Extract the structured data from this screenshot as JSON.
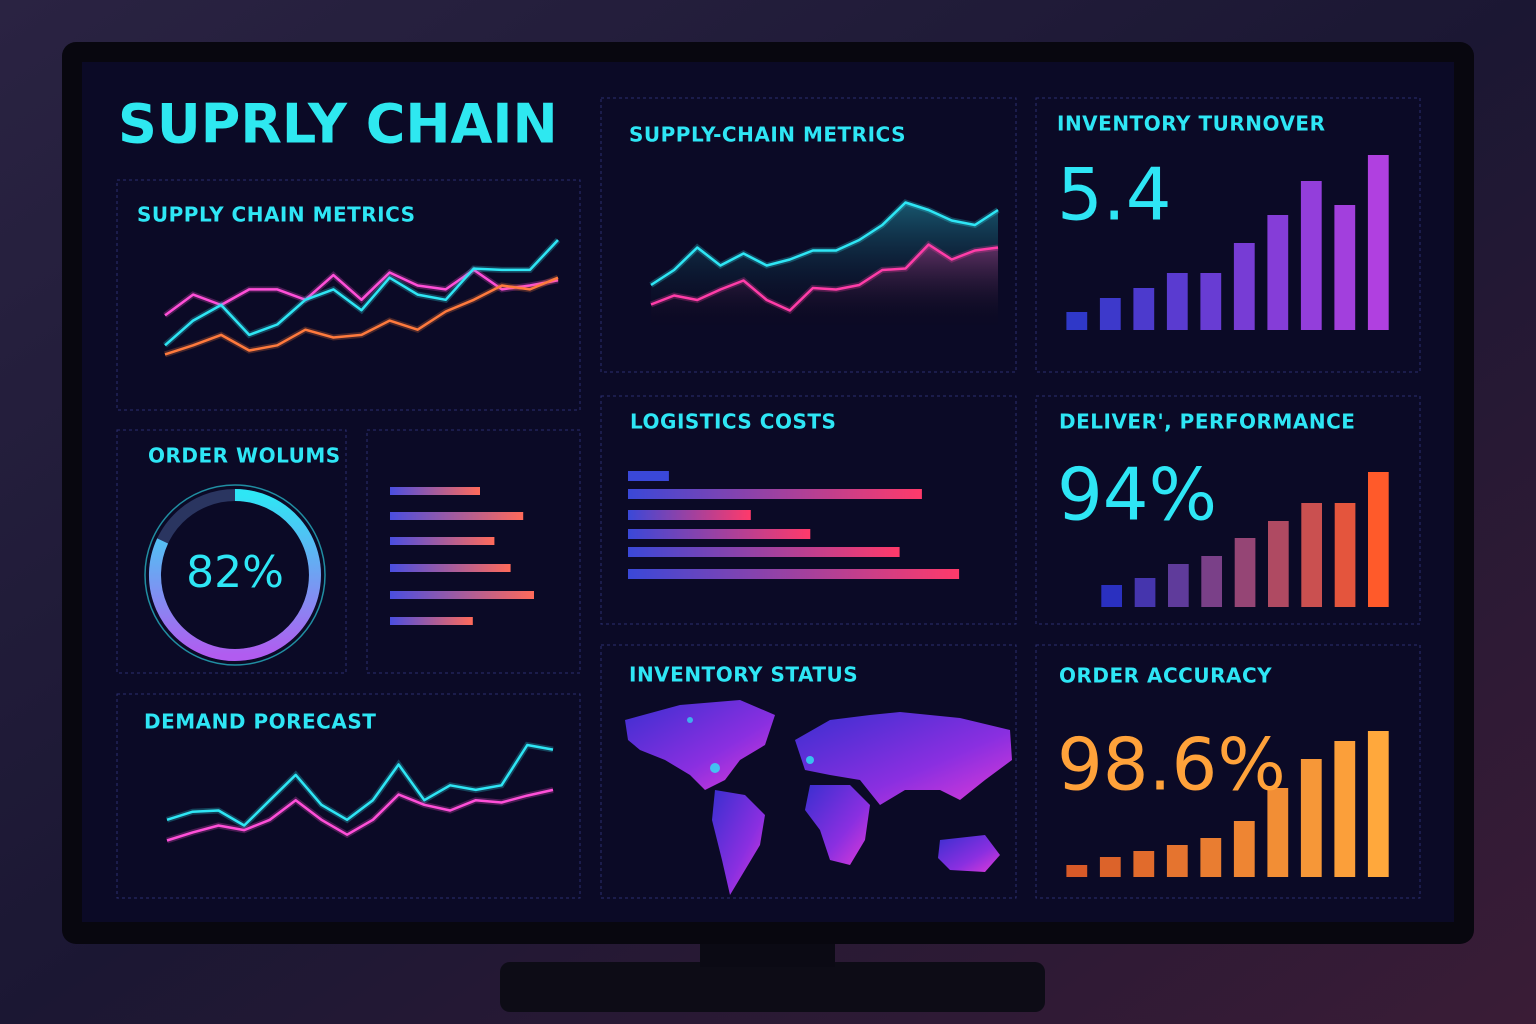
{
  "title": "SUPRLY CHAIN",
  "chart_data": [
    {
      "type": "line",
      "title": "SUPPLY CHAIN METRICS",
      "ylim": [
        0,
        100
      ],
      "series": [
        {
          "color": "#ff4fd8",
          "values": [
            42,
            58,
            50,
            62,
            62,
            54,
            73,
            54,
            75,
            65,
            62,
            77,
            62,
            65,
            69
          ]
        },
        {
          "color": "#2ee6f5",
          "values": [
            19,
            38,
            50,
            27,
            35,
            54,
            62,
            46,
            71,
            58,
            54,
            78,
            77,
            77,
            100
          ]
        },
        {
          "color": "#ff7a3d",
          "values": [
            12,
            19,
            27,
            15,
            19,
            31,
            25,
            27,
            38,
            31,
            45,
            54,
            65,
            62,
            71
          ]
        }
      ]
    },
    {
      "type": "donut",
      "title": "ORDER WOLUMS",
      "values": [
        82
      ],
      "value_labels": [
        "82%"
      ],
      "ylim": [
        0,
        100
      ],
      "colors": [
        "#2ee6f5",
        "#b15cf0"
      ]
    },
    {
      "type": "hbar",
      "categories": [
        null,
        null,
        null,
        null,
        null,
        null
      ],
      "values": [
        50,
        74,
        58,
        67,
        80,
        46
      ],
      "xlim": [
        0,
        100
      ],
      "colors": [
        "#4a4ee0",
        "#ff6a5a"
      ]
    },
    {
      "type": "line",
      "title": "DEMAND PORECAST",
      "ylim": [
        0,
        100
      ],
      "series": [
        {
          "color": "#2ee6f5",
          "values": [
            35,
            42,
            43,
            30,
            52,
            74,
            48,
            35,
            52,
            83,
            52,
            65,
            61,
            65,
            100,
            96
          ]
        },
        {
          "color": "#ff4fd8",
          "values": [
            17,
            24,
            30,
            26,
            35,
            52,
            35,
            22,
            35,
            57,
            48,
            43,
            52,
            50,
            56,
            61
          ]
        }
      ]
    },
    {
      "type": "line",
      "title": "SUPPLY-CHAIN METRICS",
      "ylim": [
        0,
        100
      ],
      "area": true,
      "series": [
        {
          "color": "#2ee6f5",
          "values": [
            30,
            40,
            55,
            43,
            51,
            43,
            47,
            53,
            53,
            60,
            70,
            85,
            80,
            73,
            70,
            80
          ]
        },
        {
          "color": "#ff3da8",
          "values": [
            17,
            23,
            20,
            27,
            33,
            20,
            13,
            28,
            27,
            30,
            40,
            41,
            57,
            47,
            53,
            55
          ]
        }
      ]
    },
    {
      "type": "hbar",
      "title": "LOGISTICS COSTS",
      "categories": [
        null,
        null,
        null,
        null,
        null,
        null
      ],
      "values": [
        11,
        79,
        33,
        49,
        73,
        89
      ],
      "xlim": [
        0,
        100
      ],
      "colors": [
        "#3a48d8",
        "#ff3a6a"
      ]
    },
    {
      "type": "map",
      "title": "INVENTORY STATUS"
    },
    {
      "type": "bar",
      "title": "INVENTORY TURNOVER",
      "kpi": 5.4,
      "kpi_color": "#2ee6f5",
      "values": [
        18,
        32,
        42,
        57,
        57,
        87,
        115,
        149,
        125,
        175
      ],
      "ylim": [
        0,
        200
      ],
      "colors": [
        "#2f38c8",
        "#b040e0"
      ]
    },
    {
      "type": "bar",
      "title": "DELIVER', PERFORMANCE",
      "kpi": {
        "value": 94,
        "label": "94%"
      },
      "kpi_color": "#2ee6f5",
      "values": [
        22,
        29,
        43,
        51,
        69,
        86,
        104,
        104,
        135
      ],
      "ylim": [
        0,
        160
      ],
      "colors": [
        "#2a30c0",
        "#ff5a2a"
      ]
    },
    {
      "type": "bar",
      "title": "ORDER ACCURACY",
      "kpi": {
        "value": 98.6,
        "label": "98.6%"
      },
      "kpi_color": "#ffa23a",
      "values": [
        12,
        20,
        26,
        32,
        39,
        56,
        89,
        118,
        136,
        146
      ],
      "ylim": [
        0,
        160
      ],
      "colors": [
        "#d85a28",
        "#ffa83c"
      ]
    }
  ]
}
